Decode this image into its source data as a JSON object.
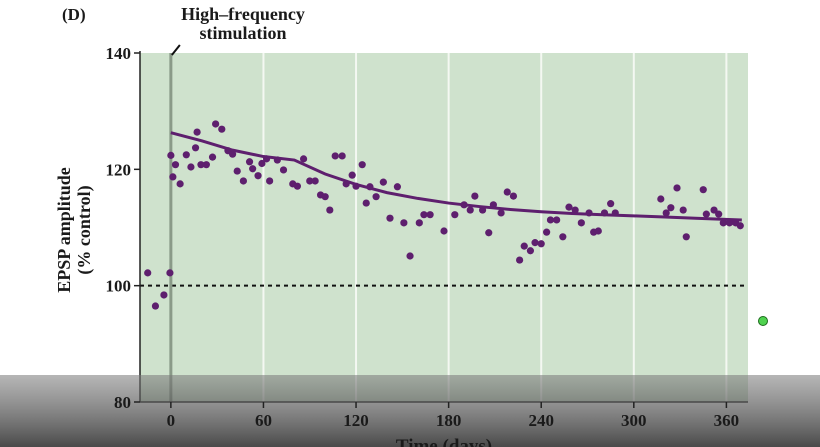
{
  "chart_data": {
    "type": "scatter",
    "panel_label": "(D)",
    "annotation": {
      "text": [
        "High–frequency",
        "stimulation"
      ],
      "x": 0
    },
    "xlabel": "Time (days)",
    "ylabel": [
      "EPSP amplitude",
      "(% control)"
    ],
    "xlim": [
      -20,
      374
    ],
    "ylim": [
      80,
      140
    ],
    "xticks": [
      0,
      60,
      120,
      180,
      240,
      300,
      360
    ],
    "yticks": [
      80,
      100,
      120,
      140
    ],
    "grid": true,
    "reference_line": 100,
    "series": [
      {
        "type": "scatter",
        "color": "#5e1f6e",
        "x": [
          -15,
          -10,
          -4.5,
          -0.6,
          0,
          1.3,
          3,
          6,
          10,
          13,
          16,
          17,
          19.5,
          23,
          27,
          29,
          33,
          37,
          40,
          43,
          47,
          51,
          53,
          56.5,
          59,
          62,
          64,
          69,
          73,
          79,
          82,
          86,
          90,
          93.5,
          97,
          100,
          103,
          106.5,
          111,
          113.6,
          117.5,
          120,
          124,
          126.6,
          129,
          133,
          137.7,
          142,
          146.8,
          151,
          155,
          161,
          164,
          168,
          177,
          184,
          190,
          194,
          197,
          202,
          206,
          209,
          214,
          218,
          222,
          226,
          229,
          233,
          236,
          240,
          243.5,
          246,
          250,
          254,
          258,
          262,
          266,
          271,
          274,
          277,
          281,
          285,
          288,
          317.5,
          321,
          324,
          328,
          332,
          334,
          345,
          347,
          352,
          355,
          358,
          362,
          366,
          369
        ],
        "values": [
          102.2,
          96.5,
          98.4,
          102.2,
          122.4,
          118.7,
          120.8,
          117.5,
          122.5,
          120.4,
          123.7,
          126.4,
          120.8,
          120.8,
          122.1,
          127.8,
          126.9,
          123.2,
          122.6,
          119.7,
          118.0,
          121.3,
          120.1,
          118.9,
          121.0,
          121.8,
          118.0,
          121.6,
          119.9,
          117.5,
          117.1,
          121.8,
          118.0,
          118.0,
          115.6,
          115.3,
          113.0,
          122.3,
          122.3,
          117.5,
          119.0,
          117.1,
          120.8,
          114.2,
          117.0,
          115.3,
          117.8,
          111.6,
          117.0,
          110.8,
          105.1,
          110.8,
          112.2,
          112.2,
          109.4,
          112.2,
          113.9,
          113.0,
          115.4,
          113.0,
          109.1,
          113.9,
          112.5,
          116.1,
          115.4,
          104.4,
          106.8,
          106.0,
          107.4,
          107.2,
          109.2,
          111.3,
          111.3,
          108.4,
          113.5,
          113.0,
          110.8,
          112.5,
          109.2,
          109.4,
          112.5,
          114.1,
          112.5,
          114.9,
          112.5,
          113.4,
          116.8,
          113.0,
          108.4,
          116.5,
          112.3,
          113.0,
          112.3,
          110.8,
          110.8,
          110.8,
          110.3
        ]
      },
      {
        "type": "line",
        "color": "#5e1f6e",
        "x": [
          0,
          20,
          40,
          60,
          80,
          100,
          120,
          140,
          160,
          180,
          200,
          220,
          240,
          260,
          280,
          300,
          320,
          340,
          370
        ],
        "values": [
          126.3,
          124.9,
          123.3,
          122.2,
          121.6,
          119.2,
          117.4,
          116.0,
          115.0,
          114.2,
          113.6,
          113.1,
          112.7,
          112.4,
          112.2,
          112.0,
          111.8,
          111.6,
          111.3
        ]
      }
    ]
  }
}
